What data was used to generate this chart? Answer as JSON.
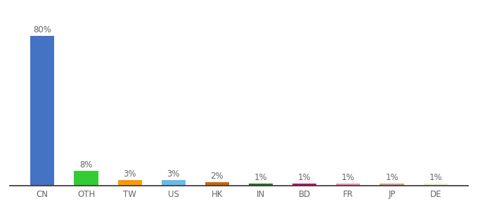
{
  "categories": [
    "CN",
    "OTH",
    "TW",
    "US",
    "HK",
    "IN",
    "BD",
    "FR",
    "JP",
    "DE"
  ],
  "values": [
    80,
    8,
    3,
    3,
    2,
    1,
    1,
    1,
    1,
    1
  ],
  "bar_colors": [
    "#4472c4",
    "#33cc33",
    "#ff9900",
    "#66bbee",
    "#cc6600",
    "#1a7a1a",
    "#cc0066",
    "#ff88aa",
    "#dd9988",
    "#eeeecc"
  ],
  "label_fontsize": 8.5,
  "tick_fontsize": 8.5,
  "ylim": [
    0,
    90
  ],
  "background_color": "#ffffff"
}
